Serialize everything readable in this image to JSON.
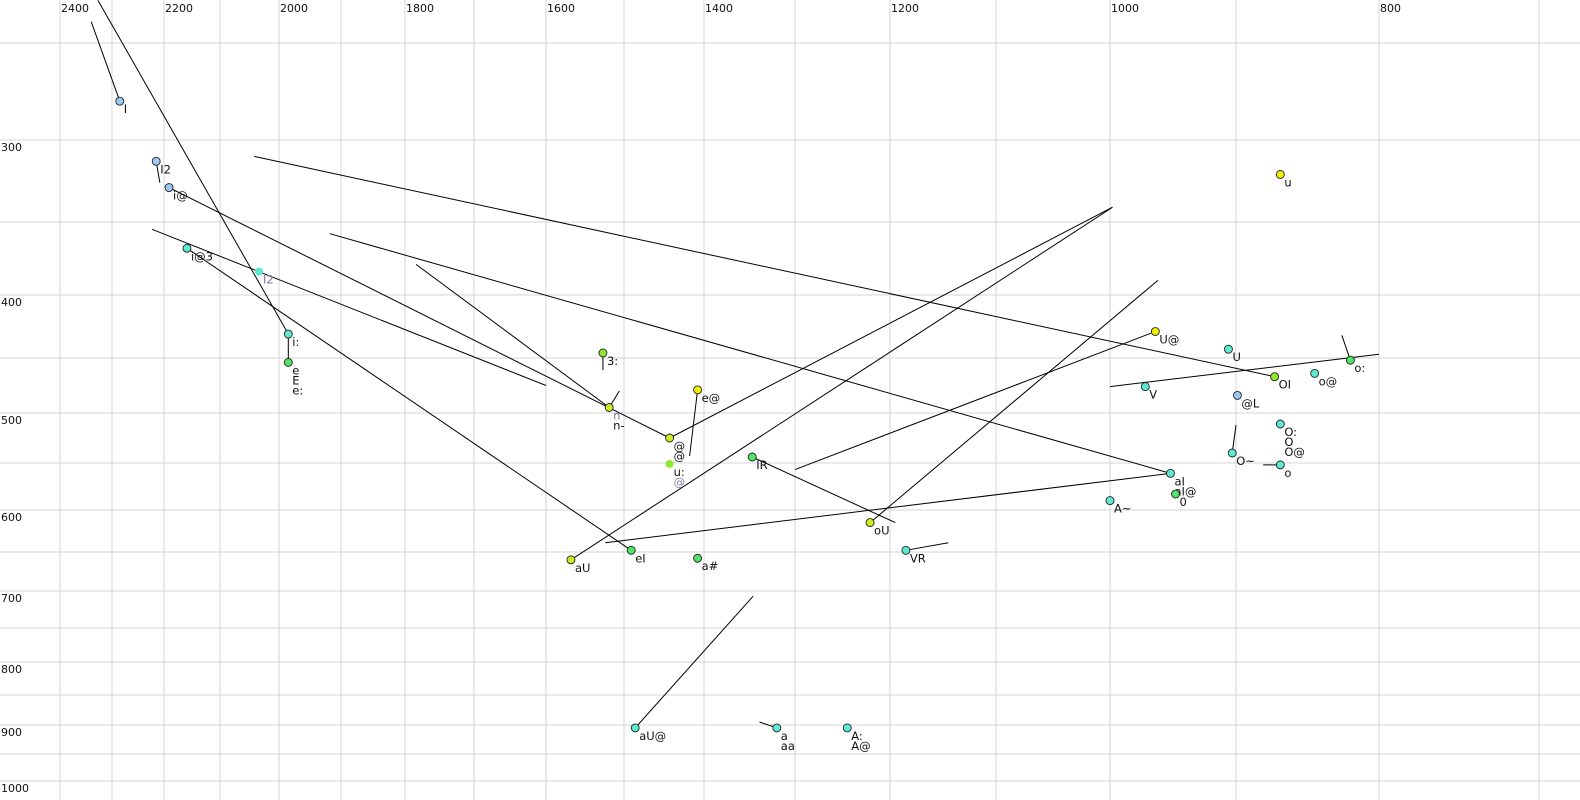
{
  "chart_data": {
    "type": "scatter",
    "title": "",
    "xlabel": "",
    "ylabel": "",
    "x_axis": {
      "reversed": true,
      "position": "top",
      "scale": "nonlinear",
      "range": [
        2400,
        700
      ],
      "tick_labels": [
        "2400",
        "2200",
        "2000",
        "1800",
        "1600",
        "1400",
        "1200",
        "1000",
        "800"
      ],
      "gridlines": [
        2400,
        2300,
        2200,
        2100,
        2000,
        1900,
        1800,
        1700,
        1600,
        1500,
        1400,
        1300,
        1200,
        1100,
        1000,
        900,
        800,
        700
      ]
    },
    "y_axis": {
      "reversed": false,
      "position": "left",
      "scale": "nonlinear",
      "range": [
        230,
        1000
      ],
      "tick_labels": [
        "300",
        "400",
        "500",
        "600",
        "700",
        "800",
        "900",
        "1000"
      ],
      "gridlines": [
        250,
        300,
        350,
        400,
        450,
        500,
        550,
        600,
        650,
        700,
        750,
        800,
        850,
        900,
        950,
        1000
      ]
    },
    "grid": true,
    "colors": {
      "blue": "#9cc8f2",
      "cyan": "#5eead2",
      "green": "#52e466",
      "lime": "#8ee830",
      "yellowgreen": "#c8f020",
      "yellow": "#f0f000",
      "gray_label": "#7a7a9a",
      "line": "#000000",
      "grid": "#d4d4d4"
    },
    "points": [
      {
        "x": 2285,
        "y": 280,
        "labels": [
          "I"
        ],
        "color": "blue"
      },
      {
        "x": 2215,
        "y": 313,
        "labels": [
          "I2"
        ],
        "color": "blue"
      },
      {
        "x": 2191,
        "y": 329,
        "labels": [
          "i@"
        ],
        "color": "blue"
      },
      {
        "x": 2159,
        "y": 368,
        "labels": [
          "i@3"
        ],
        "color": "cyan"
      },
      {
        "x": 2034,
        "y": 384,
        "labels": [
          "I2"
        ],
        "color": "cyan",
        "label_gray": true,
        "no_border": true
      },
      {
        "x": 1985,
        "y": 431,
        "labels": [
          "i:"
        ],
        "color": "cyan"
      },
      {
        "x": 1985,
        "y": 454,
        "labels": [
          "e",
          "E",
          "e:"
        ],
        "color": "green"
      },
      {
        "x": 1527,
        "y": 446,
        "labels": [
          "3:"
        ],
        "color": "lime"
      },
      {
        "x": 1519,
        "y": 495,
        "labels": [
          "n",
          "n-"
        ],
        "color": "yellowgreen",
        "gray_first": true
      },
      {
        "x": 1443,
        "y": 525,
        "labels": [
          "@",
          "@"
        ],
        "color": "yellowgreen"
      },
      {
        "x": 1443,
        "y": 551,
        "labels": [
          "u:",
          "@"
        ],
        "color": "lime",
        "no_border": true,
        "gray_last": true
      },
      {
        "x": 1408,
        "y": 479,
        "labels": [
          "e@"
        ],
        "color": "yellow"
      },
      {
        "x": 1347,
        "y": 544,
        "labels": [
          "IR"
        ],
        "color": "green"
      },
      {
        "x": 1221,
        "y": 615,
        "labels": [
          "oU"
        ],
        "color": "yellowgreen"
      },
      {
        "x": 1185,
        "y": 648,
        "labels": [
          "VR"
        ],
        "color": "cyan"
      },
      {
        "x": 1568,
        "y": 660,
        "labels": [
          "aU"
        ],
        "color": "yellowgreen"
      },
      {
        "x": 1491,
        "y": 648,
        "labels": [
          "eI"
        ],
        "color": "green"
      },
      {
        "x": 1408,
        "y": 658,
        "labels": [
          "a#"
        ],
        "color": "green"
      },
      {
        "x": 1486,
        "y": 905,
        "labels": [
          "aU@"
        ],
        "color": "cyan"
      },
      {
        "x": 1320,
        "y": 905,
        "labels": [
          "a",
          "aa"
        ],
        "color": "cyan"
      },
      {
        "x": 1245,
        "y": 905,
        "labels": [
          "A:",
          "A@"
        ],
        "color": "cyan"
      },
      {
        "x": 964,
        "y": 429,
        "labels": [
          "U@"
        ],
        "color": "yellow"
      },
      {
        "x": 906,
        "y": 443,
        "labels": [
          "U"
        ],
        "color": "cyan"
      },
      {
        "x": 972,
        "y": 476,
        "labels": [
          "V"
        ],
        "color": "cyan"
      },
      {
        "x": 873,
        "y": 467,
        "labels": [
          "OI"
        ],
        "color": "lime"
      },
      {
        "x": 845,
        "y": 464,
        "labels": [
          "o@"
        ],
        "color": "cyan"
      },
      {
        "x": 820,
        "y": 452,
        "labels": [
          "o:"
        ],
        "color": "green"
      },
      {
        "x": 899,
        "y": 484,
        "labels": [
          "@L"
        ],
        "color": "blue"
      },
      {
        "x": 869,
        "y": 511,
        "labels": [
          "O:",
          "O",
          "O@"
        ],
        "color": "cyan"
      },
      {
        "x": 903,
        "y": 540,
        "labels": [
          "O~"
        ],
        "color": "cyan"
      },
      {
        "x": 869,
        "y": 552,
        "labels": [
          "o"
        ],
        "color": "cyan"
      },
      {
        "x": 952,
        "y": 561,
        "labels": [
          "aI",
          "aI@"
        ],
        "color": "cyan"
      },
      {
        "x": 948,
        "y": 583,
        "labels": [
          "0"
        ],
        "color": "green"
      },
      {
        "x": 1000,
        "y": 590,
        "labels": [
          "A~"
        ],
        "color": "cyan"
      },
      {
        "x": 869,
        "y": 321,
        "labels": [
          "u"
        ],
        "color": "yellow"
      }
    ],
    "segments": [
      [
        [
          2340,
          239
        ],
        [
          2285,
          280
        ]
      ],
      [
        [
          2327,
          228
        ],
        [
          1985,
          431
        ]
      ],
      [
        [
          2042,
          310
        ],
        [
          873,
          467
        ]
      ],
      [
        [
          1918,
          358
        ],
        [
          952,
          561
        ]
      ],
      [
        [
          2191,
          329
        ],
        [
          1443,
          525
        ]
      ],
      [
        [
          2223,
          355
        ],
        [
          1600,
          475
        ]
      ],
      [
        [
          2159,
          368
        ],
        [
          1491,
          648
        ]
      ],
      [
        [
          1784,
          379
        ],
        [
          1519,
          495
        ]
      ],
      [
        [
          1443,
          525
        ],
        [
          998,
          341
        ]
      ],
      [
        [
          1568,
          660
        ],
        [
          998,
          341
        ]
      ],
      [
        [
          1221,
          615
        ],
        [
          962,
          390
        ]
      ],
      [
        [
          1300,
          557
        ],
        [
          964,
          429
        ]
      ],
      [
        [
          1347,
          544
        ],
        [
          1195,
          615
        ]
      ],
      [
        [
          1524,
          639
        ],
        [
          952,
          561
        ]
      ],
      [
        [
          1185,
          648
        ],
        [
          1145,
          639
        ]
      ],
      [
        [
          1000,
          476
        ],
        [
          800,
          447
        ]
      ],
      [
        [
          1486,
          905
        ],
        [
          1346,
          707
        ]
      ],
      [
        [
          1339,
          895
        ],
        [
          1320,
          905
        ]
      ],
      [
        [
          1408,
          479
        ],
        [
          1418,
          543
        ]
      ],
      [
        [
          826,
          432
        ],
        [
          820,
          452
        ]
      ],
      [
        [
          900,
          512
        ],
        [
          903,
          540
        ]
      ],
      [
        [
          881,
          552
        ],
        [
          869,
          552
        ]
      ],
      [
        [
          1527,
          446
        ],
        [
          1527,
          461
        ]
      ],
      [
        [
          1985,
          431
        ],
        [
          1985,
          454
        ]
      ],
      [
        [
          1519,
          495
        ],
        [
          1506,
          480
        ]
      ],
      [
        [
          2215,
          313
        ],
        [
          2208,
          326
        ]
      ]
    ]
  }
}
